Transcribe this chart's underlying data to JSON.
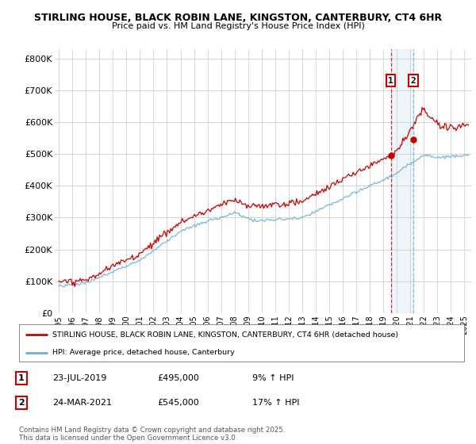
{
  "title_line1": "STIRLING HOUSE, BLACK ROBIN LANE, KINGSTON, CANTERBURY, CT4 6HR",
  "title_line2": "Price paid vs. HM Land Registry's House Price Index (HPI)",
  "ylabel_ticks": [
    "£0",
    "£100K",
    "£200K",
    "£300K",
    "£400K",
    "£500K",
    "£600K",
    "£700K",
    "£800K"
  ],
  "ytick_values": [
    0,
    100000,
    200000,
    300000,
    400000,
    500000,
    600000,
    700000,
    800000
  ],
  "ylim": [
    0,
    830000
  ],
  "xlim_start": 1994.7,
  "xlim_end": 2025.5,
  "xticks": [
    1995,
    1996,
    1997,
    1998,
    1999,
    2000,
    2001,
    2002,
    2003,
    2004,
    2005,
    2006,
    2007,
    2008,
    2009,
    2010,
    2011,
    2012,
    2013,
    2014,
    2015,
    2016,
    2017,
    2018,
    2019,
    2020,
    2021,
    2022,
    2023,
    2024,
    2025
  ],
  "hpi_color": "#6baed6",
  "price_color": "#cc0000",
  "marker1_x": 2019.55,
  "marker2_x": 2021.23,
  "marker1_price": 495000,
  "marker2_price": 545000,
  "legend_line1": "STIRLING HOUSE, BLACK ROBIN LANE, KINGSTON, CANTERBURY, CT4 6HR (detached house)",
  "legend_line2": "HPI: Average price, detached house, Canterbury",
  "footnote": "Contains HM Land Registry data © Crown copyright and database right 2025.\nThis data is licensed under the Open Government Licence v3.0.",
  "table_rows": [
    {
      "num": "1",
      "date": "23-JUL-2019",
      "price": "£495,000",
      "change": "9% ↑ HPI"
    },
    {
      "num": "2",
      "date": "24-MAR-2021",
      "price": "£545,000",
      "change": "17% ↑ HPI"
    }
  ],
  "background_color": "#ffffff",
  "grid_color": "#d0d0d0"
}
